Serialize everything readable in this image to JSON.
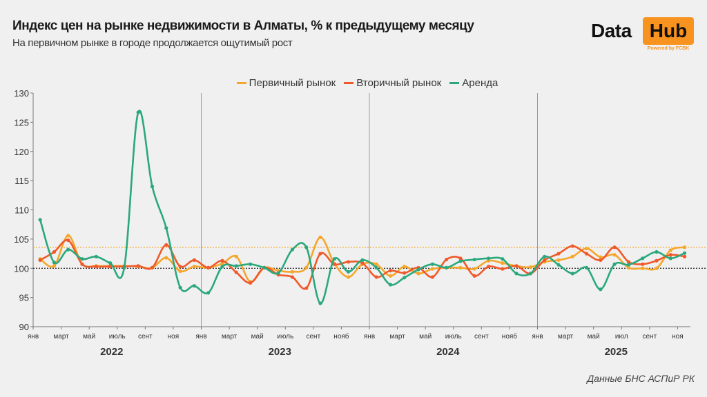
{
  "header": {
    "title": "Индекс цен на рынке недвижимости в Алматы, % к предыдущему месяцу",
    "subtitle": "На первичном рынке в городе продолжается ощутимый рост"
  },
  "logo": {
    "word1": "Data",
    "word2": "Hub",
    "tagline": "Powered by FCBK",
    "accent": "#f7931e"
  },
  "source": "Данные БНС АСПиР РК",
  "chart_data": {
    "type": "line",
    "title": "Индекс цен на рынке недвижимости в Алматы, % к предыдущему месяцу",
    "subtitle": "На первичном рынке в городе продолжается ощутимый рост",
    "ylim": [
      90,
      130
    ],
    "y_ticks": [
      90,
      95,
      100,
      105,
      110,
      115,
      120,
      125,
      130
    ],
    "years": [
      "2022",
      "2023",
      "2024",
      "2025"
    ],
    "x_tick_labels": [
      [
        "янв",
        "март",
        "май",
        "июль",
        "сент",
        "ноя"
      ],
      [
        "янв",
        "март",
        "май",
        "июль",
        "сент",
        "нояб"
      ],
      [
        "янв",
        "март",
        "май",
        "июль",
        "сент",
        "нояб"
      ],
      [
        "янв",
        "март",
        "май",
        "июл",
        "сент",
        "ноя"
      ]
    ],
    "x": [
      "2022-01",
      "2022-02",
      "2022-03",
      "2022-04",
      "2022-05",
      "2022-06",
      "2022-07",
      "2022-08",
      "2022-09",
      "2022-10",
      "2022-11",
      "2022-12",
      "2023-01",
      "2023-02",
      "2023-03",
      "2023-04",
      "2023-05",
      "2023-06",
      "2023-07",
      "2023-08",
      "2023-09",
      "2023-10",
      "2023-11",
      "2023-12",
      "2024-01",
      "2024-02",
      "2024-03",
      "2024-04",
      "2024-05",
      "2024-06",
      "2024-07",
      "2024-08",
      "2024-09",
      "2024-10",
      "2024-11",
      "2024-12",
      "2025-01",
      "2025-02",
      "2025-03",
      "2025-04",
      "2025-05",
      "2025-06",
      "2025-07",
      "2025-08",
      "2025-09",
      "2025-10",
      "2025-11"
    ],
    "series": [
      {
        "name": "Первичный рынок",
        "color": "#f5a62b",
        "values": [
          101.6,
          100.4,
          105.6,
          100.7,
          100.4,
          100.4,
          100.4,
          100.3,
          100.1,
          101.8,
          99.5,
          100.3,
          100.1,
          100.8,
          102.0,
          97.7,
          100.1,
          99.6,
          99.4,
          100.1,
          105.3,
          100.8,
          98.5,
          100.7,
          100.7,
          98.7,
          100.3,
          99.1,
          99.9,
          100.1,
          100.1,
          99.9,
          101.3,
          100.9,
          100.4,
          100.2,
          101.1,
          101.4,
          102.0,
          103.4,
          101.9,
          102.3,
          100.1,
          100.0,
          100.0,
          103.1,
          103.6
        ]
      },
      {
        "name": "Вторичный рынок",
        "color": "#f0592a",
        "values": [
          101.4,
          102.8,
          104.8,
          100.7,
          100.3,
          100.3,
          100.3,
          100.4,
          100.1,
          104.0,
          100.3,
          101.4,
          100.1,
          101.3,
          99.3,
          97.5,
          100.1,
          98.9,
          98.5,
          96.6,
          102.5,
          100.7,
          101.1,
          100.9,
          98.5,
          99.6,
          99.2,
          100.1,
          98.5,
          101.5,
          101.7,
          98.7,
          100.3,
          99.9,
          100.4,
          99.1,
          101.4,
          102.5,
          103.8,
          102.5,
          101.4,
          103.6,
          101.1,
          100.7,
          101.3,
          102.3,
          102.0
        ]
      },
      {
        "name": "Аренда",
        "color": "#2aa87c",
        "values": [
          108.3,
          101.0,
          103.2,
          101.6,
          102.0,
          100.9,
          100.1,
          126.7,
          114.0,
          106.9,
          96.7,
          97.0,
          95.8,
          100.3,
          100.4,
          100.7,
          100.1,
          99.2,
          103.2,
          103.6,
          94.0,
          101.6,
          99.4,
          101.4,
          100.1,
          97.2,
          98.4,
          99.8,
          100.7,
          100.1,
          101.2,
          101.5,
          101.7,
          101.6,
          99.1,
          99.1,
          102.0,
          100.6,
          99.1,
          100.1,
          96.4,
          100.7,
          100.6,
          101.7,
          102.8,
          101.7,
          102.6
        ]
      }
    ],
    "reference_lines": [
      {
        "value": 100,
        "color": "#222222",
        "style": "dotted"
      },
      {
        "value": 103.6,
        "color": "#f5a62b",
        "style": "dotted"
      }
    ],
    "year_separators": true,
    "grid": false,
    "legend": "top-center"
  }
}
